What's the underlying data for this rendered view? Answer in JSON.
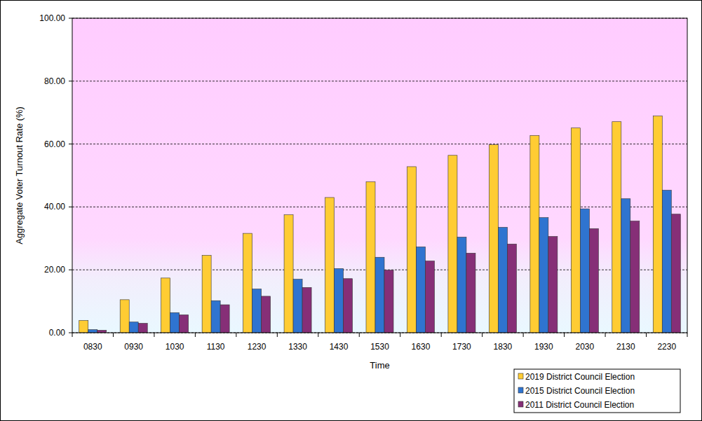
{
  "chart_data": {
    "type": "bar",
    "x_label": "Time",
    "y_label": "Aggregate Voter Turnout Rate (%)",
    "categories": [
      "0830",
      "0930",
      "1030",
      "1130",
      "1230",
      "1330",
      "1430",
      "1530",
      "1630",
      "1730",
      "1830",
      "1930",
      "2030",
      "2130",
      "2230"
    ],
    "series": [
      {
        "name": "2019 District Council Election",
        "color": "#ffcc33",
        "values": [
          3.9,
          10.5,
          17.4,
          24.6,
          31.6,
          37.5,
          43.0,
          48.0,
          52.8,
          56.4,
          59.8,
          62.7,
          65.1,
          67.1,
          68.9
        ]
      },
      {
        "name": "2015 District Council Election",
        "color": "#2f74d0",
        "values": [
          1.0,
          3.4,
          6.4,
          10.2,
          13.9,
          17.0,
          20.4,
          24.0,
          27.3,
          30.4,
          33.5,
          36.6,
          39.4,
          42.6,
          45.3
        ]
      },
      {
        "name": "2011 District Council Election",
        "color": "#862f77",
        "values": [
          0.8,
          3.0,
          5.7,
          8.9,
          11.6,
          14.4,
          17.2,
          19.9,
          22.8,
          25.3,
          28.2,
          30.6,
          33.1,
          35.5,
          37.7
        ]
      }
    ],
    "ylim": [
      0,
      100
    ],
    "yticks": [
      {
        "value": 0,
        "label": "0.00"
      },
      {
        "value": 20,
        "label": "20.00"
      },
      {
        "value": 40,
        "label": "40.00"
      },
      {
        "value": 60,
        "label": "60.00"
      },
      {
        "value": 80,
        "label": "80.00"
      },
      {
        "value": 100,
        "label": "100.00"
      }
    ],
    "grid": true,
    "legend": "bottom-right"
  }
}
